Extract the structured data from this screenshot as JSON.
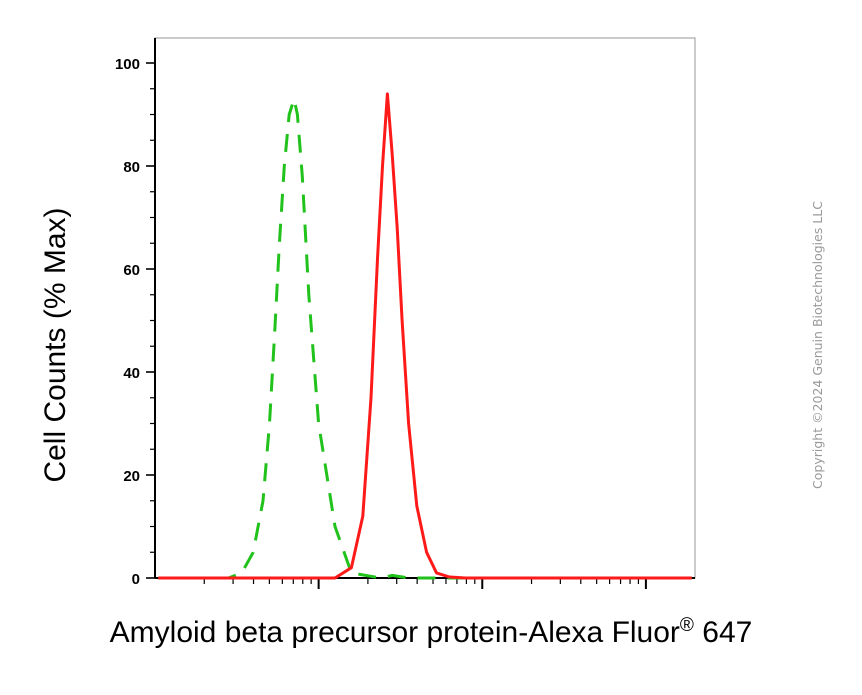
{
  "chart_data": {
    "type": "line",
    "title": "",
    "xlabel": "Amyloid beta precursor protein-Alexa Fluor",
    "xlabel_mark": "®",
    "xlabel_suffix": " 647",
    "ylabel": "Cell Counts (% Max)",
    "x_scale": "log",
    "ylim": [
      0,
      100
    ],
    "yticks": [
      0,
      20,
      40,
      60,
      80,
      100
    ],
    "ytick_labels": [
      "0",
      "20",
      "40",
      "60",
      "80",
      "100"
    ],
    "xtick_labels": [],
    "grid": false,
    "legend": null,
    "series": [
      {
        "style": "dashed",
        "color": "#22c21c",
        "x": [
          0.02,
          0.24,
          0.3,
          0.38,
          0.45,
          0.53,
          0.6,
          0.66,
          0.7,
          0.73,
          0.76,
          0.79,
          0.82,
          0.85,
          0.87,
          0.9,
          0.94,
          1.0,
          1.1,
          1.2,
          1.38,
          1.45,
          1.55,
          1.7,
          2.0,
          2.5,
          3.0,
          3.28
        ],
        "y": [
          0,
          0,
          0,
          0,
          0,
          1,
          5,
          15,
          30,
          47,
          65,
          80,
          90,
          93,
          90,
          78,
          55,
          30,
          10,
          1,
          0,
          0.5,
          0,
          0,
          0,
          0,
          0,
          0
        ]
      },
      {
        "style": "solid",
        "color": "#ff1a1a",
        "x": [
          0.02,
          0.5,
          0.8,
          1.0,
          1.1,
          1.2,
          1.27,
          1.32,
          1.36,
          1.39,
          1.42,
          1.45,
          1.48,
          1.51,
          1.55,
          1.6,
          1.66,
          1.72,
          1.8,
          1.9,
          2.2,
          2.6,
          3.0,
          3.28
        ],
        "y": [
          0,
          0,
          0,
          0,
          0,
          2,
          12,
          35,
          62,
          80,
          94,
          82,
          68,
          50,
          30,
          14,
          5,
          1,
          0.2,
          0,
          0,
          0,
          0,
          0
        ]
      }
    ]
  },
  "copyright": "Copyright ©2024 Genuin Biotechnologies LLC"
}
